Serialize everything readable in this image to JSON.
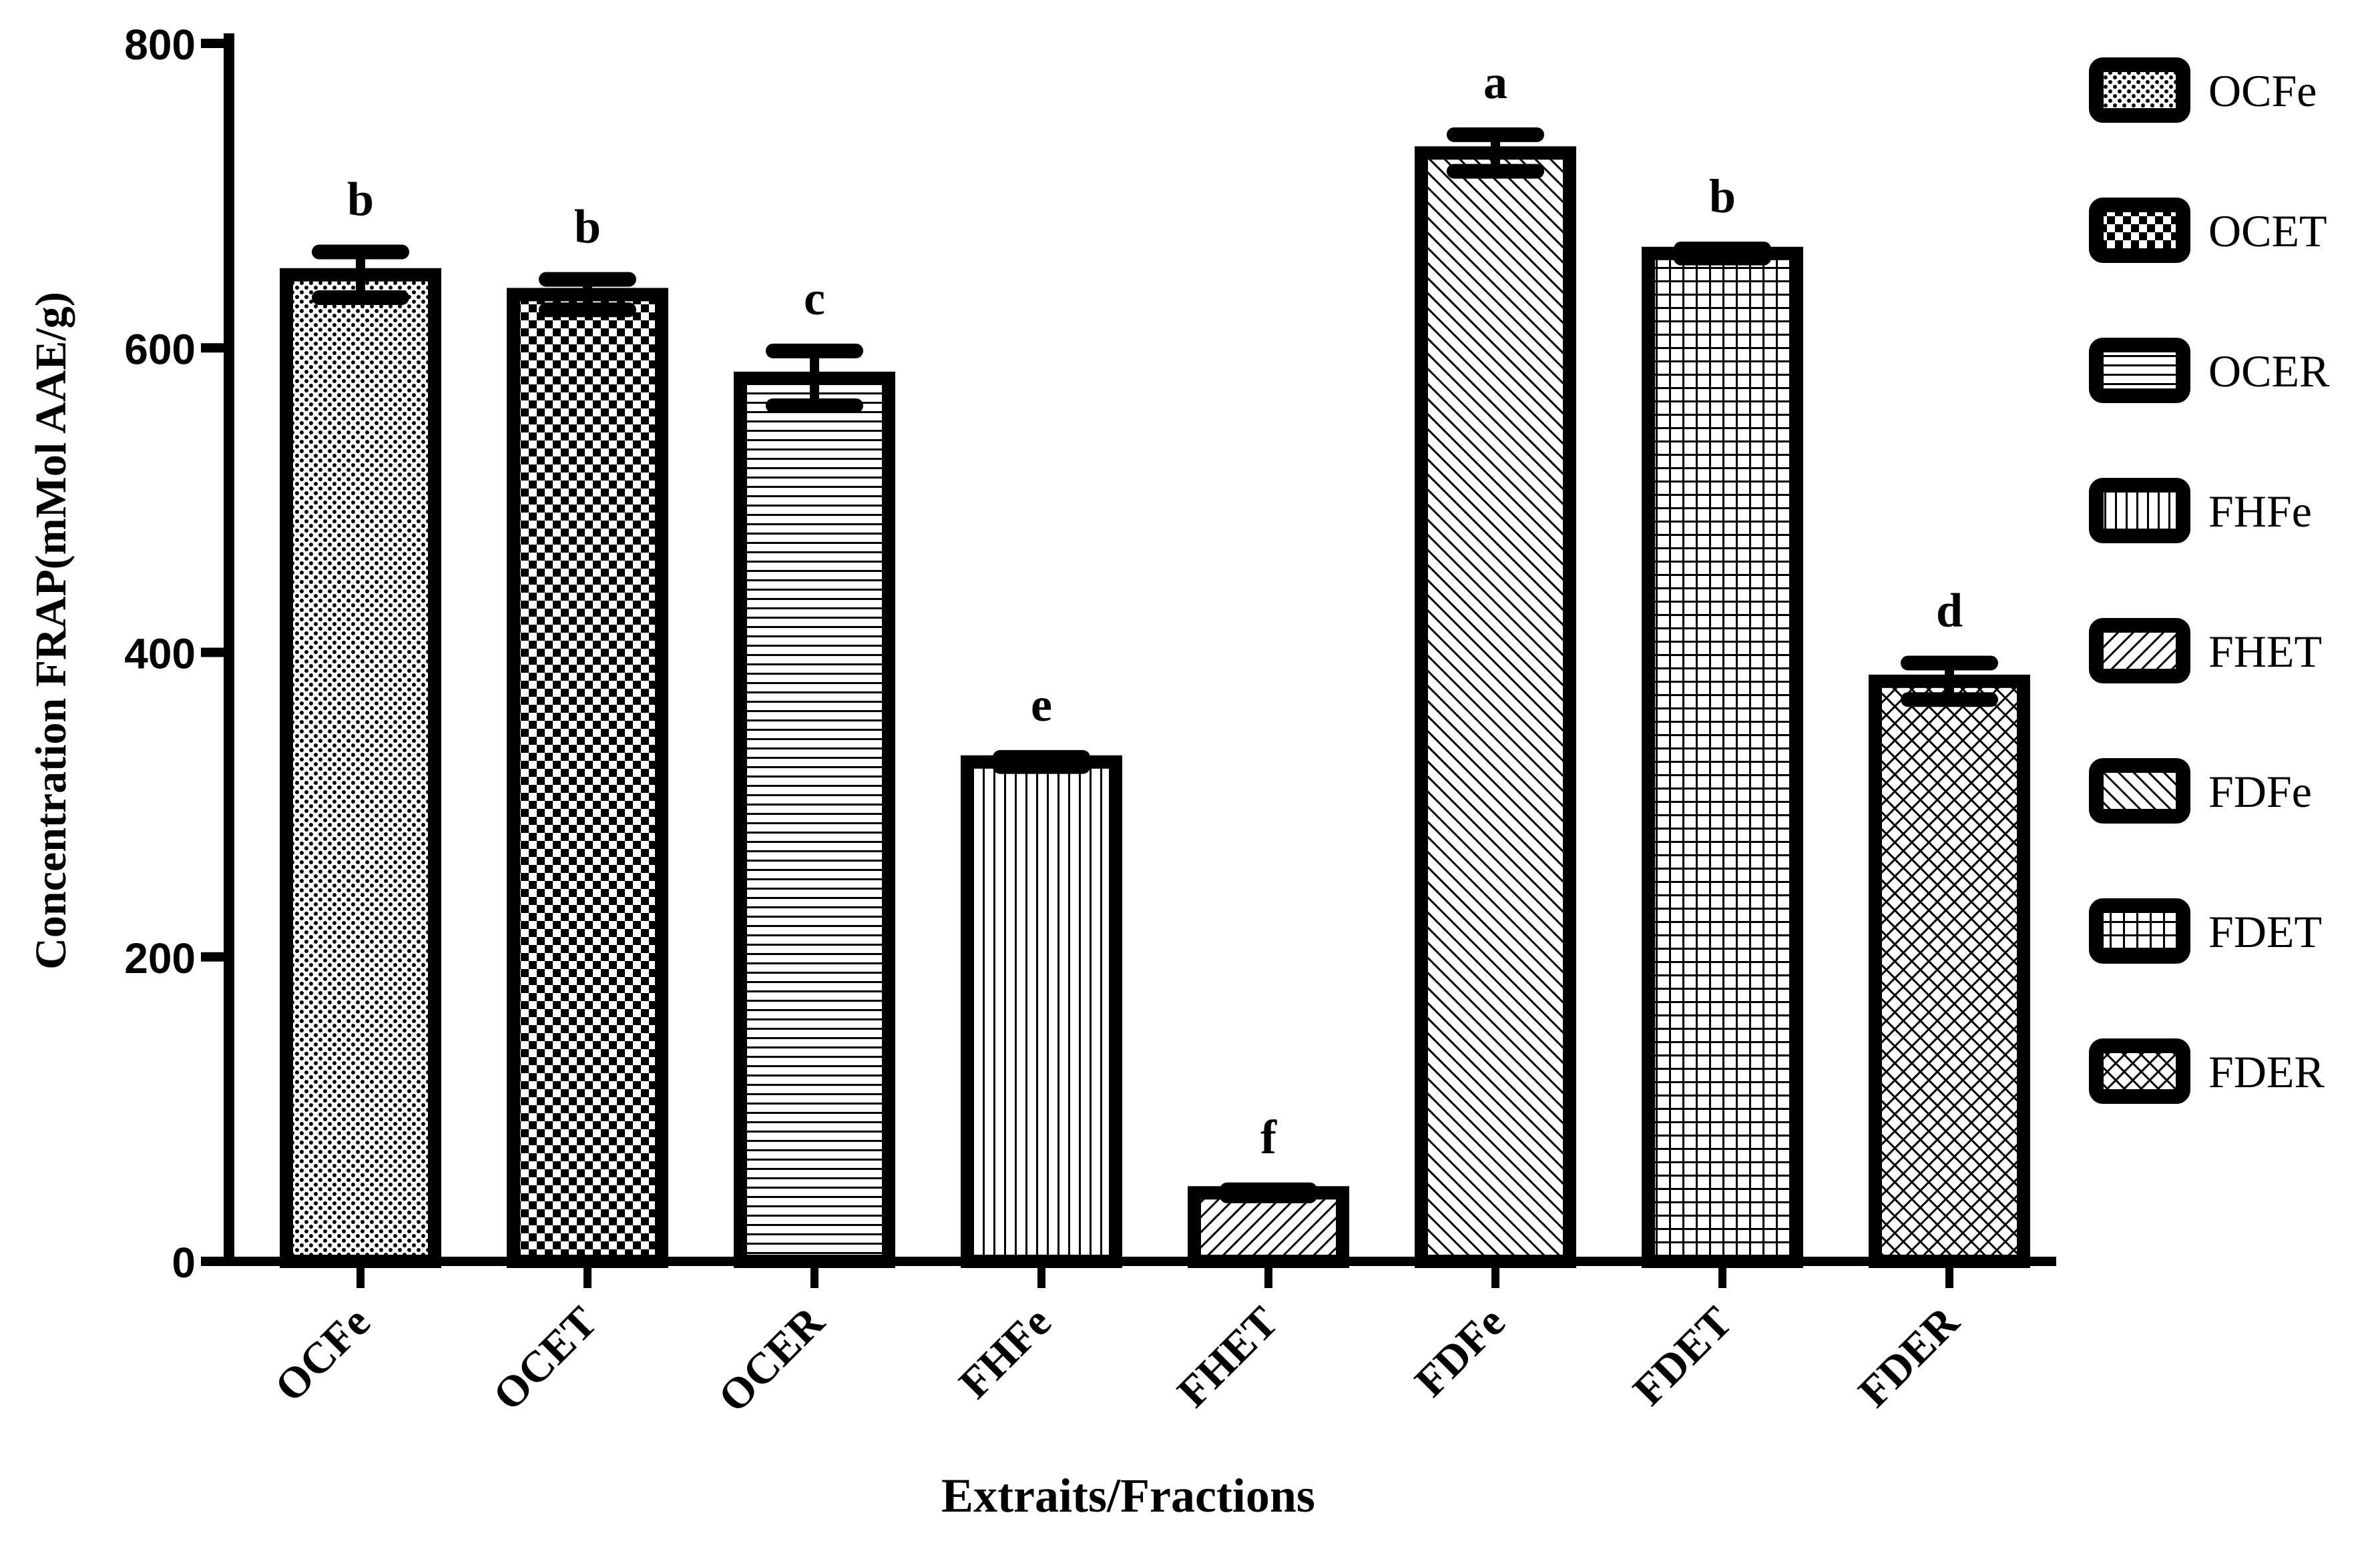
{
  "chart_data": {
    "type": "bar",
    "title": "",
    "xlabel": "Extraits/Fractions",
    "ylabel": "Concentration FRAP(mMol AAE/g)",
    "ylim": [
      0,
      800
    ],
    "yticks": [
      0,
      200,
      400,
      600,
      800
    ],
    "grid": false,
    "legend_position": "right",
    "categories": [
      "OCFe",
      "OCET",
      "OCER",
      "FHFe",
      "FHET",
      "FDFe",
      "FDET",
      "FDER"
    ],
    "values": [
      648,
      635,
      580,
      328,
      45,
      728,
      662,
      381
    ],
    "errors": [
      15,
      10,
      18,
      3,
      2,
      12,
      3,
      12
    ],
    "significance_letters": [
      "b",
      "b",
      "c",
      "e",
      "f",
      "a",
      "b",
      "d"
    ],
    "legend": [
      "OCFe",
      "OCET",
      "OCER",
      "FHFe",
      "FHET",
      "FDFe",
      "FDET",
      "FDER"
    ],
    "patterns": [
      "dots",
      "checker",
      "hlines",
      "vlines",
      "diag-light",
      "diag-back",
      "grid",
      "crosshatch"
    ]
  }
}
